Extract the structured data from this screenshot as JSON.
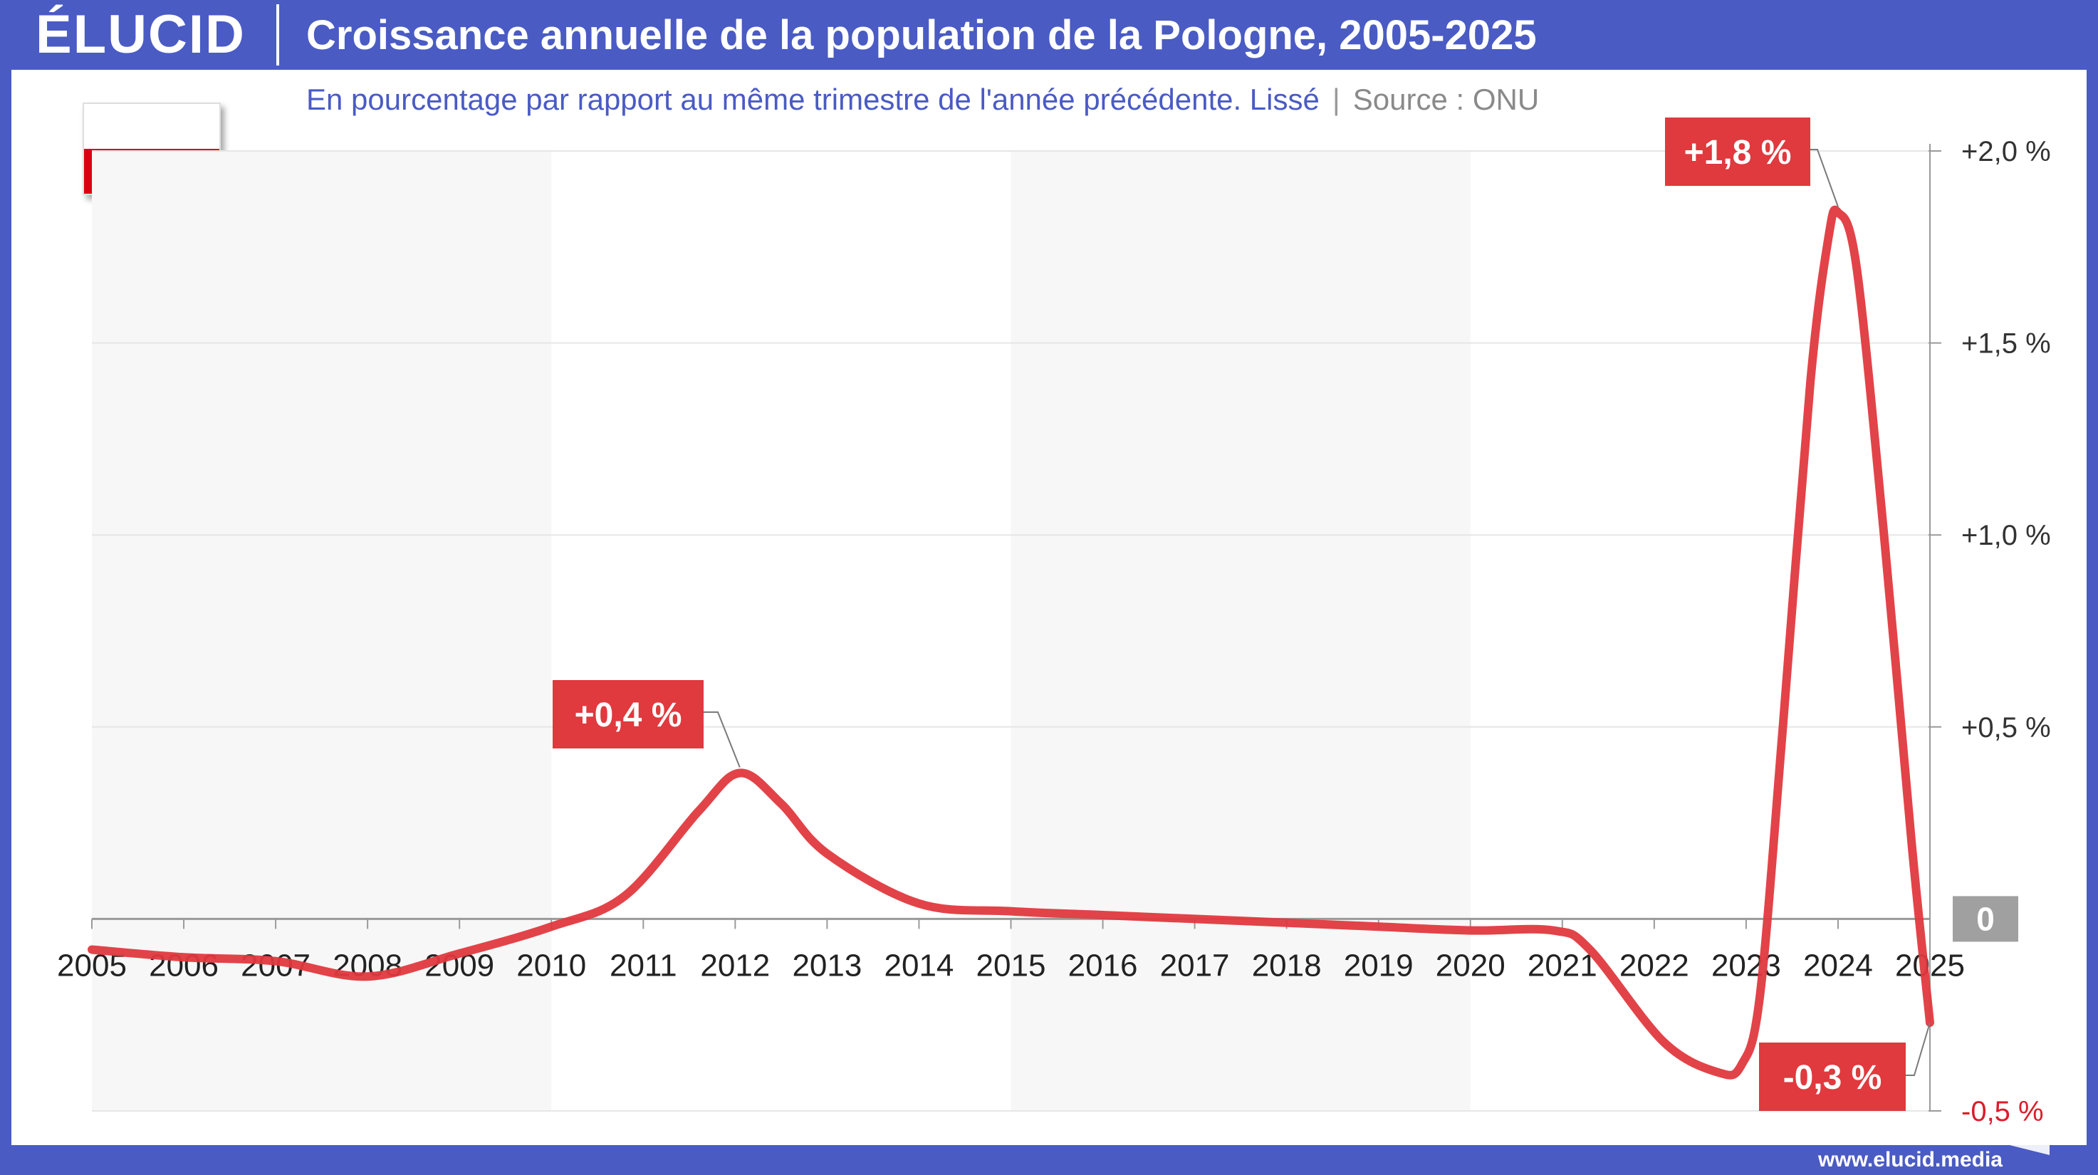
{
  "header": {
    "logo": "ÉLUCID",
    "title": "Croissance annuelle de la population de la Pologne, 2005-2025",
    "subtitle": "En pourcentage par rapport au même trimestre de l'année précédente. Lissé",
    "subtitle_sep": "|",
    "source": "Source : ONU"
  },
  "footer": {
    "site": "www.elucid.media"
  },
  "flag": {
    "country": "Poland",
    "colors": [
      "#ffffff",
      "#dc0014"
    ]
  },
  "colors": {
    "brand": "#4a5bc4",
    "line": "#e0393e",
    "label_bg": "#e0393e",
    "zero_badge": "#a0a0a0",
    "negative_tick": "#d91e2a",
    "band": "#f7f7f7"
  },
  "chart_data": {
    "type": "line",
    "title": "Croissance annuelle de la population de la Pologne, 2005-2025",
    "x_ticks": [
      "2005",
      "2006",
      "2007",
      "2008",
      "2009",
      "2010",
      "2011",
      "2012",
      "2013",
      "2014",
      "2015",
      "2016",
      "2017",
      "2018",
      "2019",
      "2020",
      "2021",
      "2022",
      "2023",
      "2024",
      "2025"
    ],
    "y_ticks": [
      {
        "value": 2.0,
        "label": "+2,0 %"
      },
      {
        "value": 1.5,
        "label": "+1,5 %"
      },
      {
        "value": 1.0,
        "label": "+1,0 %"
      },
      {
        "value": 0.5,
        "label": "+0,5 %"
      },
      {
        "value": 0,
        "label": "0"
      },
      {
        "value": -0.5,
        "label": "-0,5 %"
      }
    ],
    "xlim": [
      2005,
      2025
    ],
    "ylim": [
      -0.5,
      2.0
    ],
    "y_axis_position": "right",
    "shaded_bands": [
      [
        2005,
        2010
      ],
      [
        2015,
        2020
      ]
    ],
    "series": [
      {
        "x": [
          2005,
          2006,
          2007,
          2008,
          2009,
          2010,
          2010.8,
          2011.6,
          2012.05,
          2012.5,
          2013,
          2014,
          2015,
          2016,
          2017,
          2018,
          2019,
          2020,
          2020.9,
          2021.3,
          2022.1,
          2022.7,
          2022.95,
          2023.15,
          2023.4,
          2023.7,
          2023.9,
          2024,
          2024.2,
          2024.5,
          2024.8,
          2025
        ],
        "y": [
          -0.08,
          -0.1,
          -0.11,
          -0.15,
          -0.09,
          -0.02,
          0.06,
          0.28,
          0.38,
          0.3,
          0.17,
          0.04,
          0.02,
          0.01,
          0.0,
          -0.01,
          -0.02,
          -0.03,
          -0.03,
          -0.08,
          -0.32,
          -0.4,
          -0.38,
          -0.2,
          0.5,
          1.4,
          1.78,
          1.84,
          1.7,
          1.0,
          0.2,
          -0.27
        ]
      }
    ],
    "annotations": [
      {
        "text": "+0,4 %",
        "x": 2012.05,
        "y": 0.38
      },
      {
        "text": "+1,8 %",
        "x": 2024,
        "y": 1.84
      },
      {
        "text": "-0,3 %",
        "x": 2025,
        "y": -0.27
      }
    ]
  }
}
